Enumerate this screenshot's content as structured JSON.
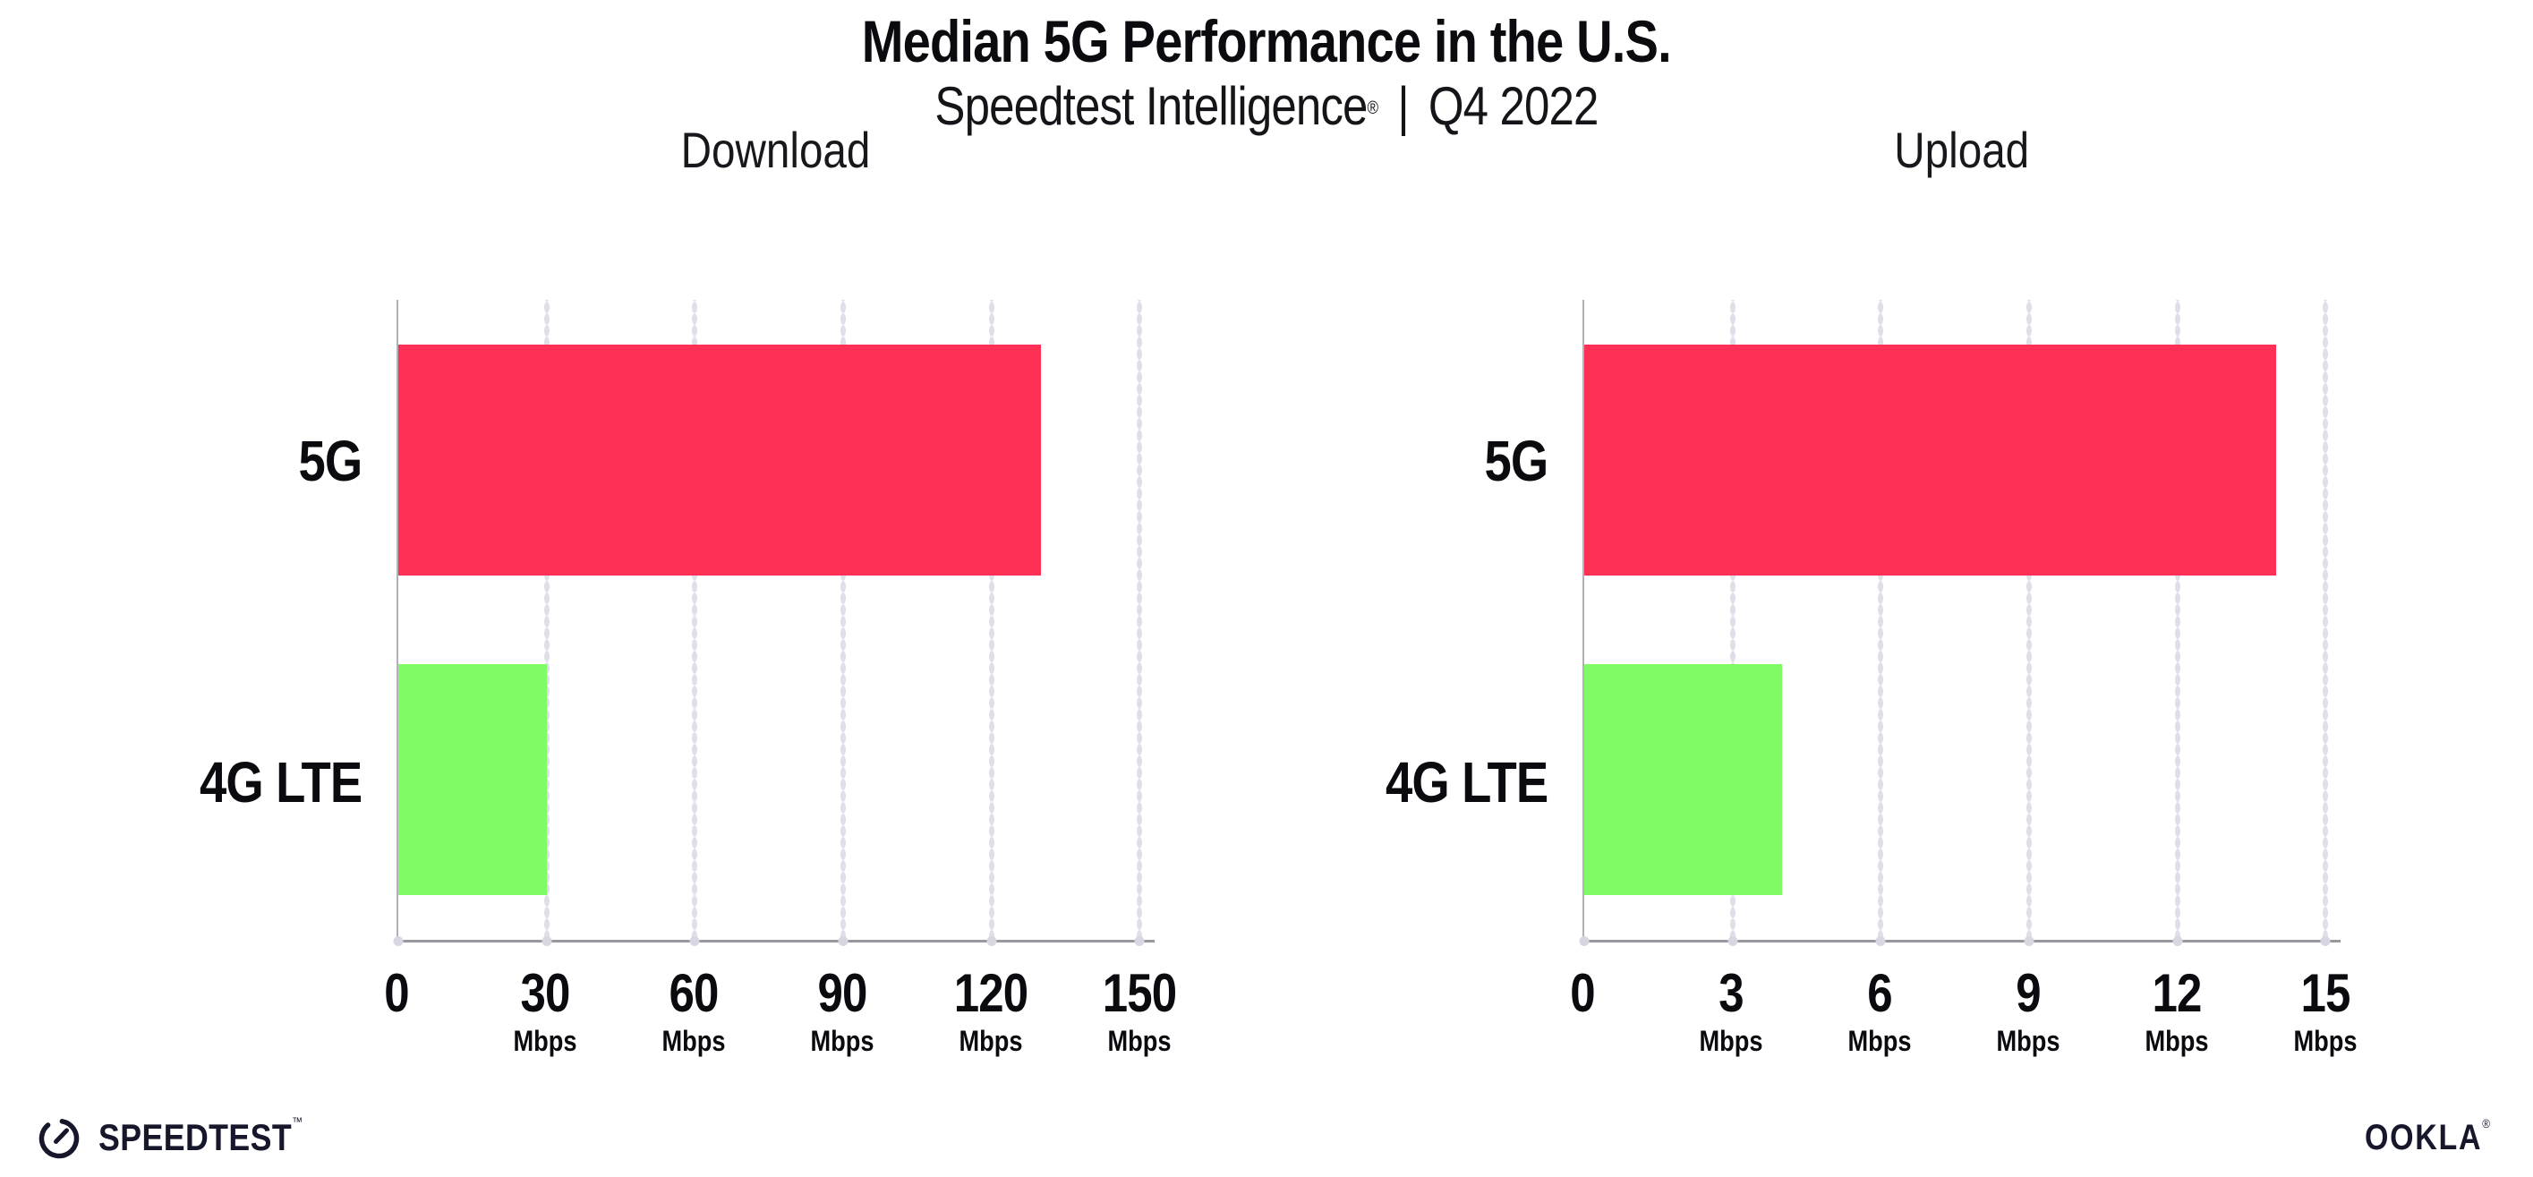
{
  "header": {
    "title": "Median 5G Performance in the U.S.",
    "subtitle": {
      "product": "Speedtest Intelligence",
      "registered_mark": "®",
      "separator": "|",
      "period": "Q4 2022"
    }
  },
  "chart_data": [
    {
      "type": "bar",
      "orientation": "horizontal",
      "title": "Download",
      "categories": [
        "5G",
        "4G LTE"
      ],
      "values": [
        130,
        30
      ],
      "tick_unit": "Mbps",
      "ticks": [
        0,
        30,
        60,
        90,
        120,
        150
      ],
      "xlim": [
        0,
        153
      ],
      "colors": [
        "#FF3055",
        "#7FFB66"
      ],
      "grid": "dotted-vertical",
      "legend": "none"
    },
    {
      "type": "bar",
      "orientation": "horizontal",
      "title": "Upload",
      "categories": [
        "5G",
        "4G LTE"
      ],
      "values": [
        14,
        4
      ],
      "tick_unit": "Mbps",
      "ticks": [
        0,
        3,
        6,
        9,
        12,
        15
      ],
      "xlim": [
        0,
        15.3
      ],
      "colors": [
        "#FF3055",
        "#7FFB66"
      ],
      "grid": "dotted-vertical",
      "legend": "none"
    }
  ],
  "footer": {
    "speedtest_wordmark": "SPEEDTEST",
    "speedtest_mark": "™",
    "ookla_wordmark": "OOKLA",
    "ookla_mark": "®"
  },
  "icons": {
    "speedtest_gauge": "circular-gauge-with-needle"
  },
  "colors": {
    "bar_5g": "#FF3055",
    "bar_4g_lte": "#7FFB66",
    "gridline_dot": "#DFDFE9",
    "x_axis_line": "#98989E",
    "y_axis_line": "#B0B0B6",
    "text": "#0A0A0F",
    "logo_ink": "#16172B",
    "background": "#FFFFFF"
  }
}
